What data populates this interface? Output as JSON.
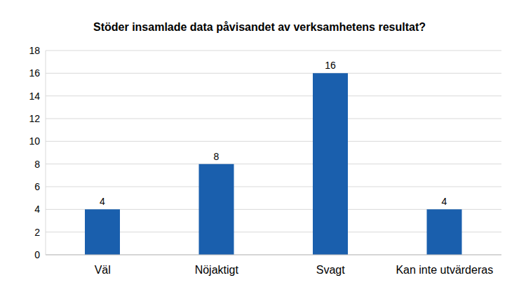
{
  "chart_data": {
    "type": "bar",
    "title": "Stöder insamlade data påvisandet av verksamhetens resultat?",
    "categories": [
      "Väl",
      "Nöjaktigt",
      "Svagt",
      "Kan inte utvärderas"
    ],
    "values": [
      4,
      8,
      16,
      4
    ],
    "color": "#1a5fad",
    "ylim": [
      0,
      18
    ],
    "yticks": [
      0,
      2,
      4,
      6,
      8,
      10,
      12,
      14,
      16,
      18
    ],
    "grid": true,
    "data_labels": true
  }
}
